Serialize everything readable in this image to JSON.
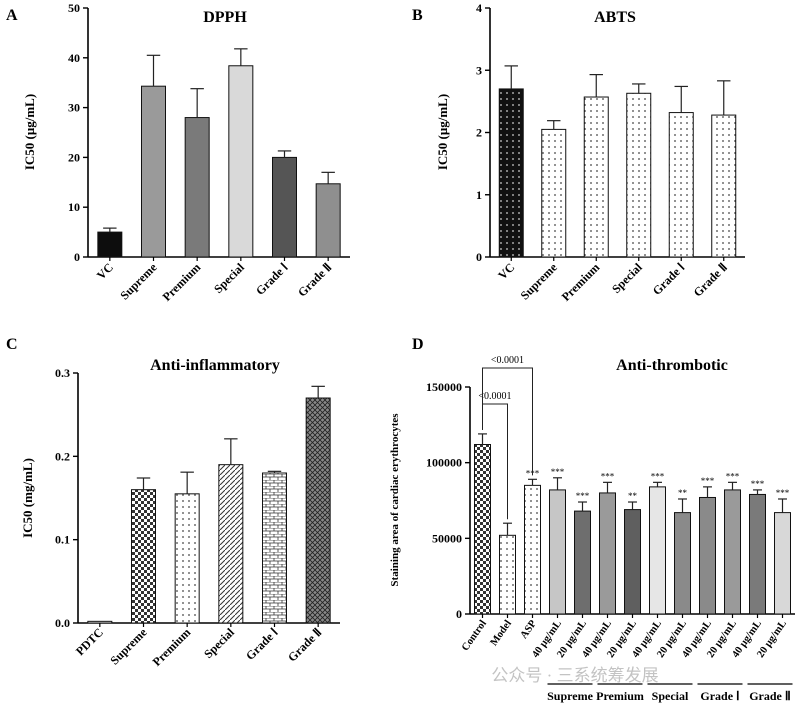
{
  "figure": {
    "watermark": "公众号 · 三系统筹发展"
  },
  "chart_data": [
    {
      "panel": "A",
      "type": "bar",
      "title": "DPPH",
      "ylabel": "IC50 (μg/mL)",
      "ylim": [
        0,
        50
      ],
      "yticks": [
        "0",
        "10",
        "20",
        "30",
        "40",
        "50"
      ],
      "categories": [
        "VC",
        "Supreme",
        "Premium",
        "Special",
        "Grade Ⅰ",
        "Grade Ⅱ"
      ],
      "values": [
        5.0,
        34.3,
        28.0,
        38.4,
        20.0,
        14.7
      ],
      "errors": [
        0.8,
        6.2,
        5.8,
        3.4,
        1.3,
        2.3
      ],
      "colors": [
        "#0d0d0d",
        "#9a9a9a",
        "#7a7a7a",
        "#d9d9d9",
        "#555555",
        "#8f8f8f"
      ]
    },
    {
      "panel": "B",
      "type": "bar",
      "title": "ABTS",
      "ylabel": "IC50 (μg/mL)",
      "ylim": [
        0,
        4
      ],
      "yticks": [
        "0",
        "1",
        "2",
        "3",
        "4"
      ],
      "categories": [
        "VC",
        "Supreme",
        "Premium",
        "Special",
        "Grade Ⅰ",
        "Grade Ⅱ"
      ],
      "values": [
        2.7,
        2.05,
        2.57,
        2.63,
        2.32,
        2.28
      ],
      "errors": [
        0.37,
        0.14,
        0.36,
        0.15,
        0.42,
        0.55
      ],
      "colors": [
        "#0d0d0d",
        "#9a9a9a",
        "#7a7a7a",
        "#d9d9d9",
        "#555555",
        "#8f8f8f"
      ]
    },
    {
      "panel": "C",
      "type": "bar",
      "title": "Anti-inflammatory",
      "ylabel": "IC50 (mg/mL)",
      "ylim": [
        0,
        0.3
      ],
      "yticks": [
        "0.0",
        "0.1",
        "0.2",
        "0.3"
      ],
      "categories": [
        "PDTC",
        "Supreme",
        "Premium",
        "Special",
        "Grade Ⅰ",
        "Grade Ⅱ"
      ],
      "values": [
        0.002,
        0.16,
        0.155,
        0.19,
        0.18,
        0.27
      ],
      "errors": [
        0.0,
        0.014,
        0.026,
        0.031,
        0.002,
        0.014
      ],
      "colors": [
        "#f2f2f2",
        "#bdbdbd",
        "#a6a6a6",
        "#cfcfcf",
        "#9e9e9e",
        "#7a7a7a"
      ]
    },
    {
      "panel": "D",
      "type": "bar",
      "title": "Anti-thrombotic",
      "ylabel": "Staining area of cardiac erythrocytes",
      "ylim": [
        0,
        150000
      ],
      "yticks": [
        "0",
        "50000",
        "100000",
        "150000"
      ],
      "categories": [
        "Control",
        "Model",
        "ASP",
        "40 μg/mL",
        "20 μg/mL",
        "40 μg/mL",
        "20 μg/mL",
        "40 μg/mL",
        "20 μg/mL",
        "40 μg/mL",
        "20 μg/mL",
        "40 μg/mL",
        "20 μg/mL"
      ],
      "values": [
        112000,
        52000,
        85000,
        82000,
        68000,
        80000,
        69000,
        84000,
        67000,
        77000,
        82000,
        79000,
        67000
      ],
      "errors": [
        7000,
        8000,
        4000,
        8000,
        6000,
        7000,
        5000,
        3000,
        9000,
        7000,
        5000,
        3000,
        9000
      ],
      "significance": [
        "",
        "",
        "***",
        "***",
        "***",
        "***",
        "**",
        "***",
        "**",
        "***",
        "***",
        "***",
        "***"
      ],
      "colors": [
        "#c8c8c8",
        "#a8a8a8",
        "#9a9a9a",
        "#c6c6c6",
        "#6e6e6e",
        "#9a9a9a",
        "#5f5f5f",
        "#e6e6e6",
        "#8a8a8a",
        "#8a8a8a",
        "#9a9a9a",
        "#7a7a7a",
        "#d8d8d8"
      ],
      "groups": [
        "Supreme",
        "Premium",
        "Special",
        "Grade Ⅰ",
        "Grade Ⅱ"
      ],
      "comparisons": [
        {
          "from": 0,
          "to": 1,
          "label": "<0.0001"
        },
        {
          "from": 0,
          "to": 2,
          "label": "<0.0001"
        }
      ]
    }
  ]
}
